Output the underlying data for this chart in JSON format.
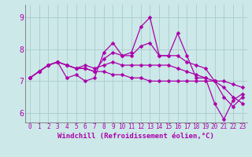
{
  "xlabel": "Windchill (Refroidissement éolien,°C)",
  "background_color": "#cce8e8",
  "grid_color": "#aacccc",
  "line_color": "#aa00aa",
  "xlim": [
    -0.5,
    23.5
  ],
  "ylim": [
    5.7,
    9.4
  ],
  "yticks": [
    6,
    7,
    8,
    9
  ],
  "xticks": [
    0,
    1,
    2,
    3,
    4,
    5,
    6,
    7,
    8,
    9,
    10,
    11,
    12,
    13,
    14,
    15,
    16,
    17,
    18,
    19,
    20,
    21,
    22,
    23
  ],
  "series": [
    [
      7.1,
      7.3,
      7.5,
      7.6,
      7.1,
      7.2,
      7.0,
      7.1,
      7.9,
      8.2,
      7.8,
      7.9,
      8.7,
      9.0,
      7.8,
      7.8,
      8.5,
      7.8,
      7.1,
      7.1,
      6.3,
      5.8,
      6.4,
      6.6
    ],
    [
      7.1,
      7.3,
      7.5,
      7.6,
      7.5,
      7.4,
      7.4,
      7.3,
      7.3,
      7.2,
      7.2,
      7.1,
      7.1,
      7.0,
      7.0,
      7.0,
      7.0,
      7.0,
      7.0,
      7.0,
      7.0,
      7.0,
      6.9,
      6.8
    ],
    [
      7.1,
      7.3,
      7.5,
      7.6,
      7.5,
      7.4,
      7.4,
      7.3,
      7.7,
      7.9,
      7.8,
      7.8,
      8.1,
      8.2,
      7.8,
      7.8,
      7.8,
      7.6,
      7.5,
      7.4,
      7.0,
      6.5,
      6.2,
      6.5
    ],
    [
      7.1,
      7.3,
      7.5,
      7.6,
      7.5,
      7.4,
      7.5,
      7.4,
      7.5,
      7.6,
      7.5,
      7.5,
      7.5,
      7.5,
      7.5,
      7.5,
      7.4,
      7.3,
      7.2,
      7.1,
      7.0,
      6.8,
      6.5,
      6.3
    ]
  ],
  "markersize": 2.5,
  "linewidth": 0.9,
  "tick_fontsize": 5.5,
  "axis_fontsize": 6.5
}
